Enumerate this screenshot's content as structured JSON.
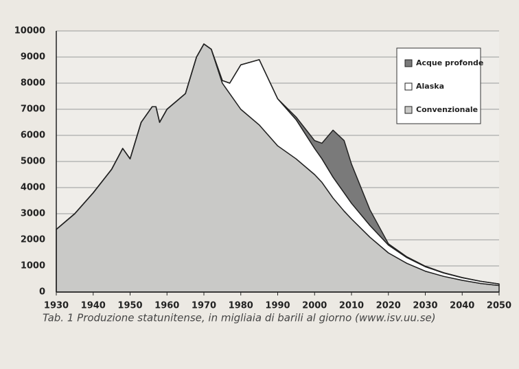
{
  "chart_data": {
    "type": "stacked_area",
    "caption": "Tab. 1 Produzione statunitense, in migliaia di barili al giorno (www.isv.uu.se)",
    "x": [
      1930,
      1935,
      1940,
      1945,
      1948,
      1950,
      1953,
      1956,
      1957,
      1958,
      1960,
      1965,
      1968,
      1970,
      1972,
      1975,
      1977,
      1980,
      1985,
      1990,
      1995,
      2000,
      2002,
      2005,
      2008,
      2010,
      2015,
      2020,
      2025,
      2030,
      2035,
      2040,
      2045,
      2050
    ],
    "series": [
      {
        "name": "Acque profonde",
        "color": "#7a7a7a",
        "values": [
          0,
          0,
          0,
          0,
          0,
          0,
          0,
          0,
          0,
          0,
          0,
          0,
          0,
          0,
          0,
          0,
          0,
          0,
          0,
          0,
          100,
          300,
          600,
          1800,
          2000,
          1500,
          600,
          50,
          30,
          20,
          10,
          5,
          0,
          0
        ]
      },
      {
        "name": "Alaska",
        "color": "#ffffff",
        "values": [
          0,
          0,
          0,
          0,
          0,
          0,
          0,
          0,
          0,
          0,
          0,
          0,
          0,
          0,
          0,
          100,
          400,
          1700,
          2500,
          1800,
          1500,
          1000,
          900,
          800,
          700,
          600,
          450,
          300,
          220,
          170,
          130,
          100,
          80,
          60
        ]
      },
      {
        "name": "Convenzionale",
        "color": "#c9c9c7",
        "values": [
          2400,
          3000,
          3800,
          4700,
          5500,
          5100,
          6500,
          7100,
          7100,
          6500,
          7000,
          7600,
          9000,
          9500,
          9300,
          8000,
          7600,
          7000,
          6400,
          5600,
          5100,
          4500,
          4200,
          3600,
          3100,
          2800,
          2100,
          1500,
          1100,
          800,
          600,
          450,
          330,
          250
        ]
      }
    ],
    "xlim": [
      1930,
      2050
    ],
    "xticks": [
      1930,
      1940,
      1950,
      1960,
      1970,
      1980,
      1990,
      2000,
      2010,
      2020,
      2030,
      2040,
      2050
    ],
    "ylim": [
      0,
      10000
    ],
    "yticks": [
      0,
      1000,
      2000,
      3000,
      4000,
      5000,
      6000,
      7000,
      8000,
      9000,
      10000
    ],
    "grid": true
  }
}
